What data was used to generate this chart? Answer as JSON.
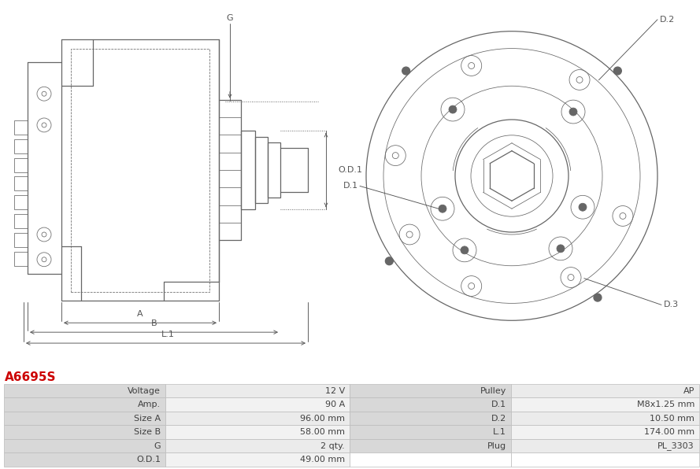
{
  "title": "A6695S",
  "title_color": "#cc0000",
  "bg_color": "#ffffff",
  "table_data": [
    [
      "Voltage",
      "12 V",
      "Pulley",
      "AP"
    ],
    [
      "Amp.",
      "90 A",
      "D.1",
      "M8x1.25 mm"
    ],
    [
      "Size A",
      "96.00 mm",
      "D.2",
      "10.50 mm"
    ],
    [
      "Size B",
      "58.00 mm",
      "L.1",
      "174.00 mm"
    ],
    [
      "G",
      "2 qty.",
      "Plug",
      "PL_3303"
    ],
    [
      "O.D.1",
      "49.00 mm",
      "",
      ""
    ]
  ],
  "lc": "#666666",
  "dim_color": "#555555",
  "title_fs": 11,
  "table_label_bg": "#d8d8d8",
  "table_val_bg_even": "#ebebeb",
  "table_val_bg_odd": "#f2f2f2",
  "table_border": "#bbbbbb"
}
